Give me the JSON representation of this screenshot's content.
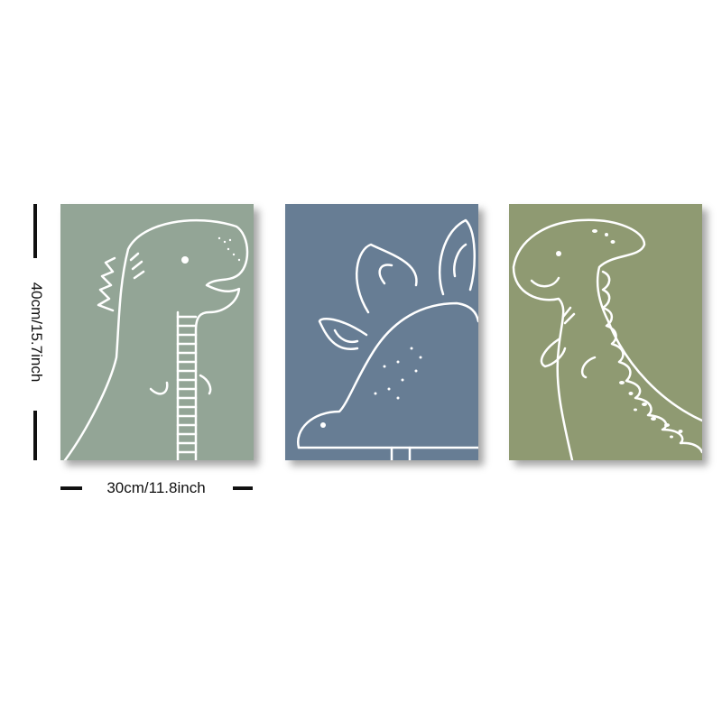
{
  "dimensions": {
    "height_label": "40cm/15.7inch",
    "width_label": "30cm/11.8inch"
  },
  "panels": [
    {
      "subject": "t-rex",
      "color": "#93a596"
    },
    {
      "subject": "stegosaurus",
      "color": "#677d94"
    },
    {
      "subject": "long-neck dinosaur",
      "color": "#8f9a72"
    }
  ],
  "line_color": "#ffffff"
}
